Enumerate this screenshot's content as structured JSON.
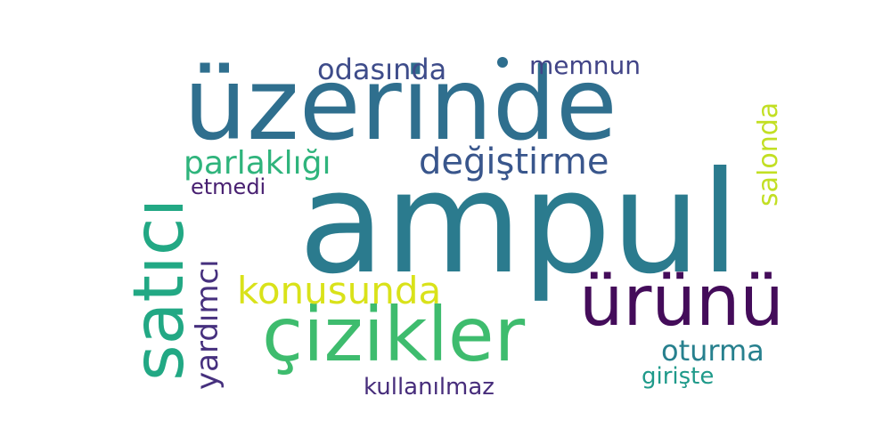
{
  "words": {
    "ampul": {
      "text": "ampul",
      "color": "#2b7b8e"
    },
    "uzerinde": {
      "text": "üzerinde",
      "color": "#2f6f8e"
    },
    "cizikler": {
      "text": "çizikler",
      "color": "#3ebc6e"
    },
    "urunu": {
      "text": "ürünü",
      "color": "#440c5a"
    },
    "satici": {
      "text": "satıcı",
      "color": "#22a884"
    },
    "konusunda": {
      "text": "konusunda",
      "color": "#d9e21a"
    },
    "degistirme": {
      "text": "değiştirme",
      "color": "#39568c"
    },
    "parlakligi": {
      "text": "parlaklığı",
      "color": "#2fb47c"
    },
    "odasinda": {
      "text": "odasında",
      "color": "#3e4c8a"
    },
    "oturma": {
      "text": "oturma",
      "color": "#27808e"
    },
    "salonda": {
      "text": "salonda",
      "color": "#c2df23"
    },
    "yardimci": {
      "text": "yardımcı",
      "color": "#46307e"
    },
    "memnun": {
      "text": "memnun",
      "color": "#414487"
    },
    "kullanilmaz": {
      "text": "kullanılmaz",
      "color": "#472d7b"
    },
    "giriste": {
      "text": "girişte",
      "color": "#1f9a8a"
    },
    "etmedi": {
      "text": "etmedi",
      "color": "#482071"
    }
  },
  "dot_color": "#2e6e8e"
}
